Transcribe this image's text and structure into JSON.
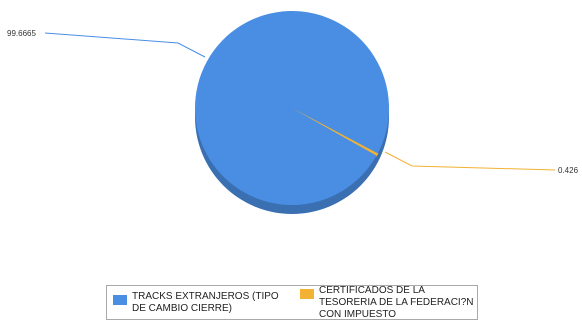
{
  "chart_data": {
    "type": "pie",
    "title": "",
    "three_d": true,
    "legend_position": "bottom",
    "slices": [
      {
        "name": "TRACKS EXTRANJEROS (TIPO DE CAMBIO CIERRE)",
        "value": 99.6665,
        "label": "99.6665",
        "color": "#4a8ee4"
      },
      {
        "name": "CERTIFICADOS DE LA TESORERIA DE LA FEDERACI?N CON IMPUESTO",
        "value": 0.426,
        "label": "0.426",
        "color": "#f2b233"
      }
    ]
  },
  "legend": {
    "items": [
      {
        "label": "TRACKS EXTRANJEROS (TIPO DE CAMBIO CIERRE)",
        "color": "#4a8ee4"
      },
      {
        "label": "CERTIFICADOS DE LA TESORERIA DE LA FEDERACI?N CON IMPUESTO",
        "color": "#f2b233"
      }
    ]
  }
}
